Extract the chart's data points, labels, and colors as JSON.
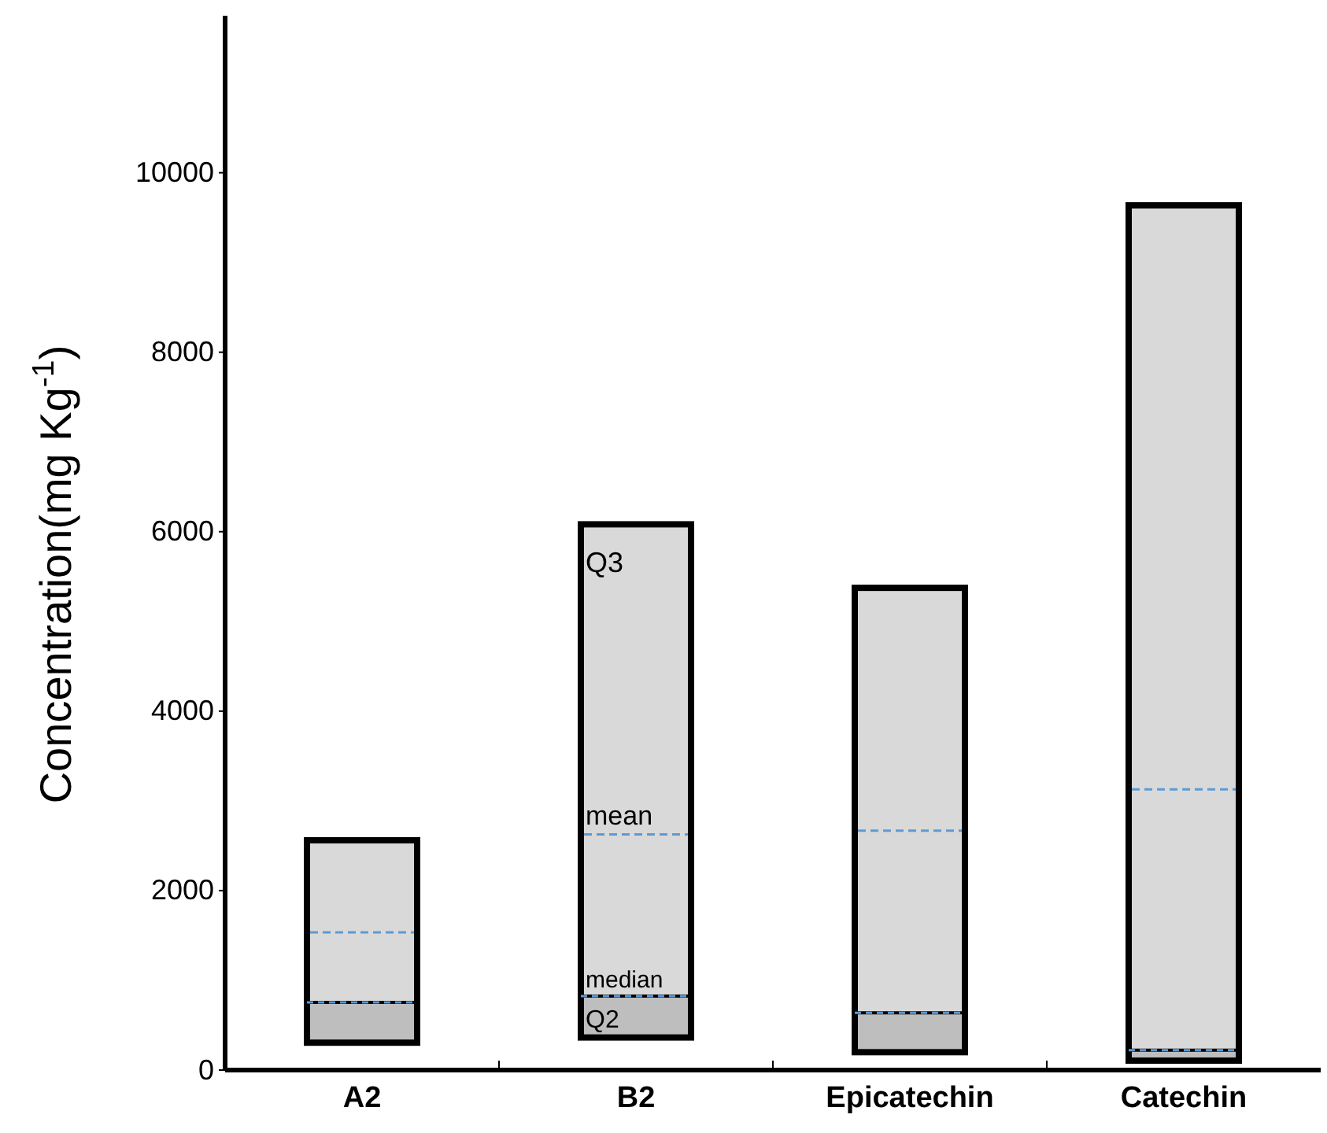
{
  "chart_data": {
    "type": "box",
    "ylabel": "Concentration(mg Kg$^{-1}$)",
    "categories": [
      "A2",
      "B2",
      "Epicatechin",
      "Catechin"
    ],
    "boxes": [
      {
        "low": 305,
        "q1": 305,
        "median": 754,
        "q3": 2561,
        "high": 2561,
        "mean": 1535
      },
      {
        "low": 363,
        "q1": 363,
        "median": 824,
        "q3": 6082,
        "high": 6082,
        "mean": 2626
      },
      {
        "low": 199,
        "q1": 199,
        "median": 637,
        "q3": 5374,
        "high": 5374,
        "mean": 2667
      },
      {
        "low": 105,
        "q1": 105,
        "median": 222,
        "q3": 9637,
        "high": 9637,
        "mean": 3128
      }
    ],
    "color": "#d9d9d9",
    "ylim": [
      0,
      11750
    ],
    "yticks": [
      0,
      2000,
      4000,
      6000,
      8000,
      10000
    ],
    "grid": false,
    "annotations": [
      "Q3",
      "mean",
      "median",
      "Q2"
    ]
  }
}
